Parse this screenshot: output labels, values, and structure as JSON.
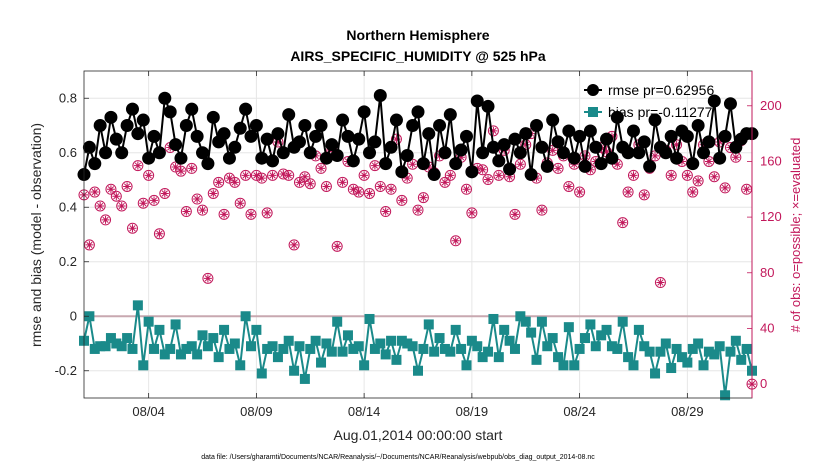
{
  "chart_data": {
    "type": "line",
    "title": "Northern Hemisphere",
    "subtitle": "AIRS_SPECIFIC_HUMIDITY @ 525 hPa",
    "xlabel": "Aug.01,2014 00:00:00 start",
    "ylabel": "rmse and bias (model - observation)",
    "ylabel_right": "# of obs: o=possible; ×=evaluated",
    "footer": "data file: /Users/gharamti/Documents/NCAR/Reanalysis/~/Documents/NCAR/Reanalysis/webpub/obs_diag_output_2014-08.nc",
    "x_range": [
      1.0,
      32.0
    ],
    "ylim": [
      -0.3,
      0.9
    ],
    "ylim_right": [
      -10,
      225
    ],
    "x_ticks": [
      4,
      9,
      14,
      19,
      24,
      29
    ],
    "x_tick_labels": [
      "08/04",
      "08/09",
      "08/14",
      "08/19",
      "08/24",
      "08/29"
    ],
    "y_ticks": [
      -0.2,
      0,
      0.2,
      0.4,
      0.6,
      0.8
    ],
    "y_tick_labels": [
      "-0.2",
      "0",
      "0.2",
      "0.4",
      "0.6",
      "0.8"
    ],
    "y_right_ticks": [
      0,
      40,
      80,
      120,
      160,
      200
    ],
    "y_right_tick_labels": [
      "0",
      "40",
      "80",
      "120",
      "160",
      "200"
    ],
    "colors": {
      "rmse": "#000000",
      "bias": "#1a8a8a",
      "obs": "#c2185b",
      "zero_line": "#c8a8b0",
      "grid": "#e6e6e6"
    },
    "series": [
      {
        "name": "rmse",
        "legend": "rmse pr=0.62956",
        "x": [
          1.0,
          1.25,
          1.5,
          1.75,
          2.0,
          2.25,
          2.5,
          2.75,
          3.0,
          3.25,
          3.5,
          3.75,
          4.0,
          4.25,
          4.5,
          4.75,
          5.0,
          5.25,
          5.5,
          5.75,
          6.0,
          6.25,
          6.5,
          6.75,
          7.0,
          7.25,
          7.5,
          7.75,
          8.0,
          8.25,
          8.5,
          8.75,
          9.0,
          9.25,
          9.5,
          9.75,
          10.0,
          10.25,
          10.5,
          10.75,
          11.0,
          11.25,
          11.5,
          11.75,
          12.0,
          12.25,
          12.5,
          12.75,
          13.0,
          13.25,
          13.5,
          13.75,
          14.0,
          14.25,
          14.5,
          14.75,
          15.0,
          15.25,
          15.5,
          15.75,
          16.0,
          16.25,
          16.5,
          16.75,
          17.0,
          17.25,
          17.5,
          17.75,
          18.0,
          18.25,
          18.5,
          18.75,
          19.0,
          19.25,
          19.5,
          19.75,
          20.0,
          20.25,
          20.5,
          20.75,
          21.0,
          21.25,
          21.5,
          21.75,
          22.0,
          22.25,
          22.5,
          22.75,
          23.0,
          23.25,
          23.5,
          23.75,
          24.0,
          24.25,
          24.5,
          24.75,
          25.0,
          25.25,
          25.5,
          25.75,
          26.0,
          26.25,
          26.5,
          26.75,
          27.0,
          27.25,
          27.5,
          27.75,
          28.0,
          28.25,
          28.5,
          28.75,
          29.0,
          29.25,
          29.5,
          29.75,
          30.0,
          30.25,
          30.5,
          30.75,
          31.0,
          31.25,
          31.5,
          31.75,
          32.0
        ],
        "values": [
          0.52,
          0.62,
          0.56,
          0.7,
          0.6,
          0.73,
          0.65,
          0.6,
          0.7,
          0.76,
          0.67,
          0.72,
          0.58,
          0.66,
          0.6,
          0.8,
          0.75,
          0.63,
          0.58,
          0.7,
          0.76,
          0.66,
          0.6,
          0.56,
          0.73,
          0.64,
          0.67,
          0.58,
          0.62,
          0.69,
          0.76,
          0.66,
          0.7,
          0.58,
          0.65,
          0.57,
          0.67,
          0.6,
          0.74,
          0.62,
          0.64,
          0.7,
          0.6,
          0.66,
          0.7,
          0.58,
          0.63,
          0.59,
          0.72,
          0.66,
          0.57,
          0.65,
          0.75,
          0.6,
          0.64,
          0.81,
          0.56,
          0.62,
          0.72,
          0.53,
          0.59,
          0.7,
          0.75,
          0.56,
          0.67,
          0.52,
          0.7,
          0.6,
          0.74,
          0.56,
          0.61,
          0.66,
          0.53,
          0.79,
          0.6,
          0.77,
          0.62,
          0.57,
          0.63,
          0.54,
          0.65,
          0.6,
          0.67,
          0.52,
          0.7,
          0.62,
          0.55,
          0.72,
          0.64,
          0.6,
          0.68,
          0.58,
          0.66,
          0.55,
          0.68,
          0.62,
          0.56,
          0.65,
          0.58,
          0.73,
          0.62,
          0.6,
          0.68,
          0.6,
          0.64,
          0.55,
          0.72,
          0.62,
          0.6,
          0.66,
          0.58,
          0.68,
          0.66,
          0.56,
          0.7,
          0.6,
          0.64,
          0.79,
          0.58,
          0.66,
          0.78,
          0.62,
          0.65,
          0.67,
          0.67
        ]
      },
      {
        "name": "bias",
        "legend": "bias pr=-0.11277",
        "x": [
          1.0,
          1.25,
          1.5,
          1.75,
          2.0,
          2.25,
          2.5,
          2.75,
          3.0,
          3.25,
          3.5,
          3.75,
          4.0,
          4.25,
          4.5,
          4.75,
          5.0,
          5.25,
          5.5,
          5.75,
          6.0,
          6.25,
          6.5,
          6.75,
          7.0,
          7.25,
          7.5,
          7.75,
          8.0,
          8.25,
          8.5,
          8.75,
          9.0,
          9.25,
          9.5,
          9.75,
          10.0,
          10.25,
          10.5,
          10.75,
          11.0,
          11.25,
          11.5,
          11.75,
          12.0,
          12.25,
          12.5,
          12.75,
          13.0,
          13.25,
          13.5,
          13.75,
          14.0,
          14.25,
          14.5,
          14.75,
          15.0,
          15.25,
          15.5,
          15.75,
          16.0,
          16.25,
          16.5,
          16.75,
          17.0,
          17.25,
          17.5,
          17.75,
          18.0,
          18.25,
          18.5,
          18.75,
          19.0,
          19.25,
          19.5,
          19.75,
          20.0,
          20.25,
          20.5,
          20.75,
          21.0,
          21.25,
          21.5,
          21.75,
          22.0,
          22.25,
          22.5,
          22.75,
          23.0,
          23.25,
          23.5,
          23.75,
          24.0,
          24.25,
          24.5,
          24.75,
          25.0,
          25.25,
          25.5,
          25.75,
          26.0,
          26.25,
          26.5,
          26.75,
          27.0,
          27.25,
          27.5,
          27.75,
          28.0,
          28.25,
          28.5,
          28.75,
          29.0,
          29.25,
          29.5,
          29.75,
          30.0,
          30.25,
          30.5,
          30.75,
          31.0,
          31.25,
          31.5,
          31.75,
          32.0
        ],
        "values": [
          -0.09,
          0.0,
          -0.12,
          -0.11,
          -0.11,
          -0.08,
          -0.1,
          -0.11,
          -0.08,
          -0.12,
          0.04,
          -0.18,
          -0.02,
          -0.12,
          -0.05,
          -0.14,
          -0.12,
          -0.03,
          -0.14,
          -0.12,
          -0.11,
          -0.14,
          -0.07,
          -0.11,
          -0.08,
          -0.15,
          -0.05,
          -0.12,
          -0.1,
          -0.18,
          0.0,
          -0.11,
          -0.05,
          -0.21,
          -0.12,
          -0.11,
          -0.15,
          -0.12,
          -0.09,
          -0.2,
          -0.11,
          -0.23,
          -0.12,
          -0.09,
          -0.17,
          -0.1,
          -0.13,
          -0.02,
          -0.13,
          -0.07,
          -0.12,
          -0.11,
          -0.18,
          -0.01,
          -0.12,
          -0.1,
          -0.14,
          -0.09,
          -0.16,
          -0.09,
          -0.1,
          -0.11,
          -0.2,
          -0.12,
          -0.03,
          -0.13,
          -0.08,
          -0.12,
          -0.13,
          -0.05,
          -0.12,
          -0.18,
          -0.09,
          -0.11,
          -0.15,
          -0.13,
          -0.01,
          -0.15,
          -0.05,
          -0.09,
          -0.12,
          0.0,
          -0.02,
          -0.06,
          -0.16,
          -0.02,
          -0.11,
          -0.08,
          -0.15,
          -0.18,
          -0.04,
          -0.18,
          -0.12,
          -0.08,
          -0.03,
          -0.11,
          -0.07,
          -0.05,
          -0.11,
          -0.12,
          -0.02,
          -0.15,
          -0.18,
          -0.05,
          -0.11,
          -0.13,
          -0.21,
          -0.13,
          -0.1,
          -0.19,
          -0.12,
          -0.15,
          -0.17,
          -0.12,
          -0.1,
          -0.18,
          -0.13,
          -0.14,
          -0.11,
          -0.29,
          -0.13,
          -0.09,
          -0.16,
          -0.12,
          -0.2
        ]
      },
      {
        "name": "obs_possible",
        "legend": "o=possible",
        "axis": "right",
        "x": [
          1.0,
          1.25,
          1.5,
          1.75,
          2.0,
          2.25,
          2.5,
          2.75,
          3.0,
          3.25,
          3.5,
          3.75,
          4.0,
          4.25,
          4.5,
          4.75,
          5.0,
          5.25,
          5.5,
          5.75,
          6.0,
          6.25,
          6.5,
          6.75,
          7.0,
          7.25,
          7.5,
          7.75,
          8.0,
          8.25,
          8.5,
          8.75,
          9.0,
          9.25,
          9.5,
          9.75,
          10.0,
          10.25,
          10.5,
          10.75,
          11.0,
          11.25,
          11.5,
          11.75,
          12.0,
          12.25,
          12.5,
          12.75,
          13.0,
          13.25,
          13.5,
          13.75,
          14.0,
          14.25,
          14.5,
          14.75,
          15.0,
          15.25,
          15.5,
          15.75,
          16.0,
          16.25,
          16.5,
          16.75,
          17.0,
          17.25,
          17.5,
          17.75,
          18.0,
          18.25,
          18.5,
          18.75,
          19.0,
          19.25,
          19.5,
          19.75,
          20.0,
          20.25,
          20.5,
          20.75,
          21.0,
          21.25,
          21.5,
          21.75,
          22.0,
          22.25,
          22.5,
          22.75,
          23.0,
          23.25,
          23.5,
          23.75,
          24.0,
          24.25,
          24.5,
          24.75,
          25.0,
          25.25,
          25.5,
          25.75,
          26.0,
          26.25,
          26.5,
          26.75,
          27.0,
          27.25,
          27.5,
          27.75,
          28.0,
          28.25,
          28.5,
          28.75,
          29.0,
          29.25,
          29.5,
          29.75,
          30.0,
          30.25,
          30.5,
          30.75,
          31.0,
          31.25,
          31.5,
          31.75,
          32.0
        ],
        "values": [
          136,
          100,
          138,
          128,
          118,
          140,
          135,
          128,
          142,
          112,
          157,
          130,
          150,
          132,
          108,
          137,
          170,
          156,
          153,
          124,
          155,
          133,
          125,
          76,
          137,
          145,
          122,
          148,
          145,
          130,
          150,
          122,
          150,
          148,
          123,
          150,
          174,
          151,
          150,
          100,
          145,
          149,
          144,
          164,
          155,
          142,
          168,
          99,
          145,
          160,
          140,
          138,
          150,
          137,
          157,
          142,
          124,
          140,
          176,
          132,
          148,
          158,
          125,
          134,
          156,
          152,
          164,
          145,
          150,
          103,
          163,
          140,
          123,
          155,
          154,
          147,
          182,
          150,
          168,
          149,
          122,
          158,
          172,
          180,
          148,
          125,
          159,
          168,
          155,
          164,
          142,
          158,
          138,
          164,
          154,
          160,
          170,
          167,
          178,
          158,
          116,
          138,
          150,
          172,
          136,
          155,
          164,
          73,
          168,
          150,
          172,
          160,
          150,
          138,
          146,
          172,
          160,
          149,
          174,
          141,
          170,
          163,
          175,
          140,
          0
        ]
      },
      {
        "name": "obs_evaluated",
        "legend": "×=evaluated",
        "axis": "right",
        "x": [
          1.0,
          1.25,
          1.5,
          1.75,
          2.0,
          2.25,
          2.5,
          2.75,
          3.0,
          3.25,
          3.5,
          3.75,
          4.0,
          4.25,
          4.5,
          4.75,
          5.0,
          5.25,
          5.5,
          5.75,
          6.0,
          6.25,
          6.5,
          6.75,
          7.0,
          7.25,
          7.5,
          7.75,
          8.0,
          8.25,
          8.5,
          8.75,
          9.0,
          9.25,
          9.5,
          9.75,
          10.0,
          10.25,
          10.5,
          10.75,
          11.0,
          11.25,
          11.5,
          11.75,
          12.0,
          12.25,
          12.5,
          12.75,
          13.0,
          13.25,
          13.5,
          13.75,
          14.0,
          14.25,
          14.5,
          14.75,
          15.0,
          15.25,
          15.5,
          15.75,
          16.0,
          16.25,
          16.5,
          16.75,
          17.0,
          17.25,
          17.5,
          17.75,
          18.0,
          18.25,
          18.5,
          18.75,
          19.0,
          19.25,
          19.5,
          19.75,
          20.0,
          20.25,
          20.5,
          20.75,
          21.0,
          21.25,
          21.5,
          21.75,
          22.0,
          22.25,
          22.5,
          22.75,
          23.0,
          23.25,
          23.5,
          23.75,
          24.0,
          24.25,
          24.5,
          24.75,
          25.0,
          25.25,
          25.5,
          25.75,
          26.0,
          26.25,
          26.5,
          26.75,
          27.0,
          27.25,
          27.5,
          27.75,
          28.0,
          28.25,
          28.5,
          28.75,
          29.0,
          29.25,
          29.5,
          29.75,
          30.0,
          30.25,
          30.5,
          30.75,
          31.0,
          31.25,
          31.5,
          31.75,
          32.0
        ],
        "values": [
          136,
          100,
          138,
          128,
          118,
          140,
          135,
          128,
          142,
          112,
          157,
          130,
          150,
          132,
          108,
          137,
          170,
          156,
          153,
          124,
          155,
          133,
          125,
          76,
          137,
          145,
          122,
          148,
          145,
          130,
          150,
          122,
          150,
          148,
          123,
          150,
          174,
          151,
          150,
          100,
          145,
          149,
          144,
          164,
          155,
          142,
          168,
          99,
          145,
          160,
          140,
          138,
          150,
          137,
          157,
          142,
          124,
          140,
          176,
          132,
          148,
          158,
          125,
          134,
          156,
          152,
          164,
          145,
          150,
          103,
          163,
          140,
          123,
          155,
          154,
          147,
          182,
          150,
          168,
          149,
          122,
          158,
          172,
          180,
          148,
          125,
          159,
          168,
          155,
          164,
          142,
          158,
          138,
          164,
          154,
          160,
          170,
          167,
          178,
          158,
          116,
          138,
          150,
          172,
          136,
          155,
          164,
          73,
          168,
          150,
          172,
          160,
          150,
          138,
          146,
          172,
          160,
          149,
          174,
          141,
          170,
          163,
          175,
          140,
          0
        ]
      }
    ]
  }
}
